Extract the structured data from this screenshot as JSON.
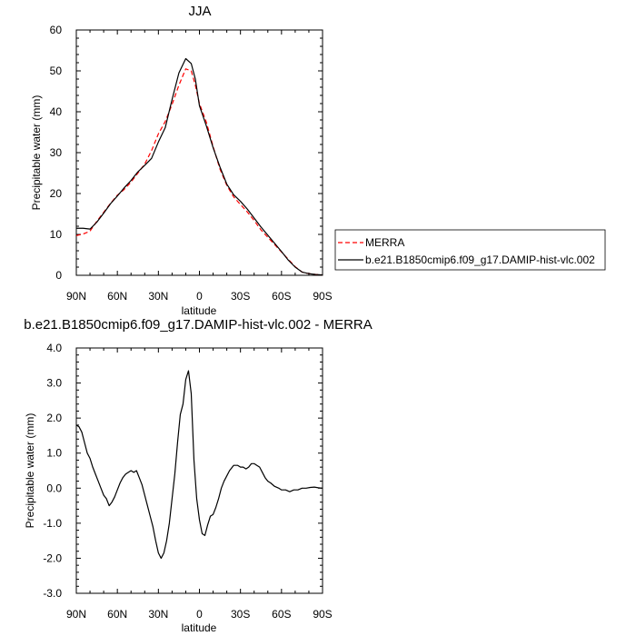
{
  "chart_data": [
    {
      "type": "line",
      "title": "JJA",
      "xlabel": "latitude",
      "ylabel": "Precipitable water (mm)",
      "xlim": [
        90,
        -90
      ],
      "ylim": [
        0,
        60
      ],
      "x_tick_values": [
        90,
        60,
        30,
        0,
        -30,
        -60,
        -90
      ],
      "x_tick_labels": [
        "90N",
        "60N",
        "30N",
        "0",
        "30S",
        "60S",
        "90S"
      ],
      "y_tick_values": [
        0,
        10,
        20,
        30,
        40,
        50,
        60
      ],
      "y_tick_labels": [
        "0",
        "10",
        "20",
        "30",
        "40",
        "50",
        "60"
      ],
      "legend_position": "right",
      "series": [
        {
          "name": "MERRA",
          "color": "#ff0000",
          "dash": "dashed",
          "x": [
            90,
            85,
            80,
            75,
            70,
            65,
            60,
            55,
            50,
            45,
            40,
            35,
            30,
            25,
            20,
            15,
            10,
            6,
            3,
            0,
            -5,
            -10,
            -15,
            -20,
            -25,
            -30,
            -35,
            -40,
            -45,
            -50,
            -55,
            -60,
            -65,
            -70,
            -75,
            -80,
            -85,
            -90
          ],
          "y": [
            9.7,
            10.1,
            10.8,
            13.2,
            15.4,
            17.6,
            19.6,
            21.0,
            22.8,
            25.0,
            27.2,
            30.5,
            34.6,
            37.6,
            41.8,
            46.5,
            50.5,
            50.0,
            46.5,
            42.0,
            37.5,
            31.5,
            26.0,
            22.0,
            19.2,
            17.3,
            15.5,
            13.4,
            11.1,
            9.3,
            7.5,
            5.7,
            3.9,
            2.1,
            0.8,
            0.4,
            0.2,
            0.1
          ]
        },
        {
          "name": "b.e21.B1850cmip6.f09_g17.DAMIP-hist-vlc.002",
          "color": "#000000",
          "dash": "solid",
          "x": [
            90,
            85,
            80,
            75,
            70,
            65,
            60,
            55,
            50,
            45,
            40,
            35,
            30,
            25,
            20,
            15,
            10,
            6,
            3,
            0,
            -5,
            -10,
            -15,
            -20,
            -25,
            -30,
            -35,
            -40,
            -45,
            -50,
            -55,
            -60,
            -65,
            -70,
            -75,
            -80,
            -85,
            -90
          ],
          "y": [
            11.5,
            11.5,
            11.3,
            13.0,
            15.2,
            17.5,
            19.4,
            21.4,
            23.2,
            25.3,
            26.9,
            28.6,
            32.6,
            36.1,
            43.0,
            49.5,
            53.0,
            51.8,
            48.0,
            41.5,
            36.6,
            31.2,
            26.5,
            22.3,
            19.7,
            18.1,
            16.2,
            14.0,
            11.8,
            9.8,
            7.8,
            5.8,
            3.7,
            2.0,
            0.8,
            0.4,
            0.2,
            0.1
          ]
        }
      ]
    },
    {
      "type": "line",
      "title": "b.e21.B1850cmip6.f09_g17.DAMIP-hist-vlc.002 - MERRA",
      "xlabel": "latitude",
      "ylabel": "Precipitable water (mm)",
      "xlim": [
        90,
        -90
      ],
      "ylim": [
        -3,
        4
      ],
      "x_tick_values": [
        90,
        60,
        30,
        0,
        -30,
        -60,
        -90
      ],
      "x_tick_labels": [
        "90N",
        "60N",
        "30N",
        "0",
        "30S",
        "60S",
        "90S"
      ],
      "y_tick_values": [
        4,
        3,
        2,
        1,
        0,
        -1,
        -2,
        -3
      ],
      "y_tick_labels": [
        "4.0",
        "3.0",
        "2.0",
        "1.0",
        "0.0",
        "-1.0",
        "-2.0",
        "-3.0"
      ],
      "series": [
        {
          "name": "",
          "color": "#000000",
          "dash": "solid",
          "x": [
            90,
            88,
            86,
            84,
            82,
            80,
            78,
            76,
            74,
            72,
            70,
            68,
            66,
            64,
            62,
            60,
            58,
            56,
            54,
            52,
            50,
            48,
            46,
            44,
            42,
            40,
            38,
            36,
            34,
            32,
            30,
            28,
            26,
            24,
            22,
            20,
            18,
            16,
            14,
            12,
            10,
            8,
            6,
            4,
            2,
            0,
            -2,
            -4,
            -6,
            -8,
            -10,
            -12,
            -14,
            -16,
            -18,
            -20,
            -22,
            -25,
            -28,
            -30,
            -32,
            -34,
            -36,
            -38,
            -40,
            -42,
            -44,
            -46,
            -48,
            -50,
            -52,
            -55,
            -58,
            -60,
            -63,
            -66,
            -69,
            -72,
            -75,
            -78,
            -81,
            -84,
            -87,
            -90
          ],
          "y": [
            1.8,
            1.75,
            1.6,
            1.3,
            1.0,
            0.85,
            0.6,
            0.4,
            0.2,
            0.0,
            -0.2,
            -0.3,
            -0.5,
            -0.4,
            -0.25,
            -0.05,
            0.15,
            0.3,
            0.4,
            0.45,
            0.5,
            0.45,
            0.5,
            0.3,
            0.1,
            -0.2,
            -0.5,
            -0.8,
            -1.1,
            -1.5,
            -1.85,
            -2.0,
            -1.85,
            -1.5,
            -1.0,
            -0.3,
            0.4,
            1.3,
            2.1,
            2.4,
            3.1,
            3.35,
            2.7,
            0.8,
            -0.3,
            -0.9,
            -1.3,
            -1.35,
            -1.05,
            -0.8,
            -0.75,
            -0.55,
            -0.3,
            0.0,
            0.2,
            0.35,
            0.5,
            0.65,
            0.65,
            0.6,
            0.6,
            0.55,
            0.6,
            0.7,
            0.7,
            0.65,
            0.6,
            0.45,
            0.3,
            0.2,
            0.15,
            0.05,
            0.0,
            -0.05,
            -0.05,
            -0.1,
            -0.05,
            -0.05,
            0.0,
            0.0,
            0.02,
            0.03,
            0.01,
            0.0
          ]
        }
      ]
    }
  ]
}
